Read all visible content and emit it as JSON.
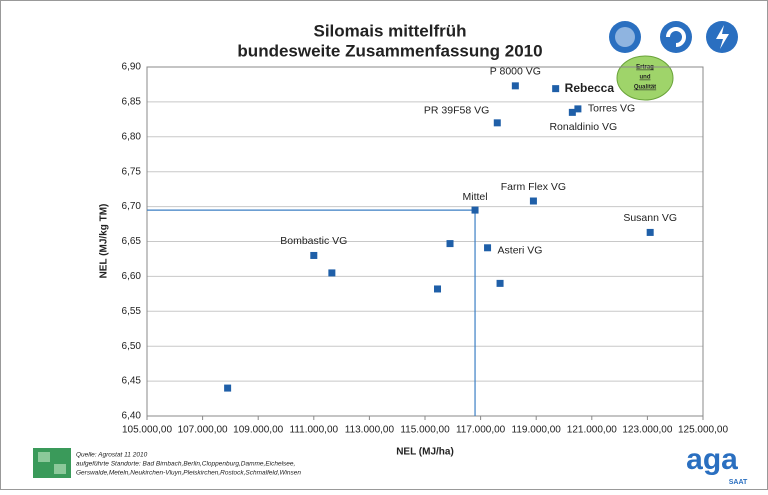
{
  "chart_data": {
    "type": "scatter",
    "title": [
      "Silomais mittelfrüh",
      "bundesweite Zusammenfassung 2010"
    ],
    "xlabel": "NEL (MJ/ha)",
    "ylabel": "NEL (MJ/kg TM)",
    "color": "#1f5fa8",
    "x": [
      107900,
      111000,
      111650,
      115450,
      115900,
      117250,
      116800,
      117700,
      117600,
      118250,
      118900,
      119700,
      120300,
      120500,
      123100
    ],
    "values": [
      6.44,
      6.63,
      6.605,
      6.582,
      6.647,
      6.641,
      6.695,
      6.59,
      6.82,
      6.873,
      6.708,
      6.869,
      6.835,
      6.84,
      6.663
    ],
    "point_labels": [
      null,
      "Bombastic VG",
      null,
      null,
      null,
      "Asteri VG",
      "Mittel",
      null,
      "PR 39F58 VG",
      "P 8000 VG",
      "Farm Flex VG",
      "Rebecca",
      "Ronaldinio VG",
      "Torres VG",
      "Susann VG"
    ],
    "xlim": [
      105000,
      125000
    ],
    "xticks": [
      {
        "value": 105000,
        "label": "105.000,00"
      },
      {
        "value": 107000,
        "label": "107.000,00"
      },
      {
        "value": 109000,
        "label": "109.000,00"
      },
      {
        "value": 111000,
        "label": "111.000,00"
      },
      {
        "value": 113000,
        "label": "113.000,00"
      },
      {
        "value": 115000,
        "label": "115.000,00"
      },
      {
        "value": 117000,
        "label": "117.000,00"
      },
      {
        "value": 119000,
        "label": "119.000,00"
      },
      {
        "value": 121000,
        "label": "121.000,00"
      },
      {
        "value": 123000,
        "label": "123.000,00"
      },
      {
        "value": 125000,
        "label": "125.000,00"
      }
    ],
    "ylim": [
      6.4,
      6.9
    ],
    "yticks": [
      {
        "value": 6.4,
        "label": "6,40"
      },
      {
        "value": 6.45,
        "label": "6,45"
      },
      {
        "value": 6.5,
        "label": "6,50"
      },
      {
        "value": 6.55,
        "label": "6,55"
      },
      {
        "value": 6.6,
        "label": "6,60"
      },
      {
        "value": 6.65,
        "label": "6,65"
      },
      {
        "value": 6.7,
        "label": "6,70"
      },
      {
        "value": 6.75,
        "label": "6,75"
      },
      {
        "value": 6.8,
        "label": "6,80"
      },
      {
        "value": 6.85,
        "label": "6,85"
      },
      {
        "value": 6.9,
        "label": "6,90"
      }
    ],
    "grid": true,
    "badge": [
      "Ertrag",
      "und",
      "Qualität"
    ],
    "footnote": [
      "Quelle: Agrostat 11  2010",
      "aufgeführte Standorte:  Bad Birnbach,Berlin,Cloppenburg,Damme,Eichelsee,",
      "Gerswalde,Meteln,Neukirchen-Vluyn,Pleiskirchen,Rostock,Schmalfeld,Winsen"
    ],
    "logo": [
      "aga",
      "SAAT"
    ]
  }
}
